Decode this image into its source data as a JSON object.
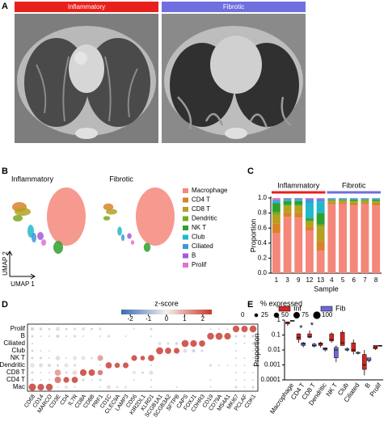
{
  "panel_a": {
    "label": "A",
    "groups": [
      {
        "name": "Inflammatory",
        "color": "#e8201c"
      },
      {
        "name": "Fibrotic",
        "color": "#6f6fe0"
      }
    ]
  },
  "panel_b": {
    "label": "B",
    "titles": [
      "Inflammatory",
      "Fibrotic"
    ],
    "x_label": "UMAP 1",
    "y_label": "UMAP 2"
  },
  "chart_data": [
    {
      "type": "stacked_bar",
      "label": "C",
      "y_label": "Proportion",
      "x_label": "Sample",
      "categories": [
        "1",
        "3",
        "9",
        "12",
        "13",
        "4",
        "5",
        "6",
        "7",
        "8"
      ],
      "groups": [
        {
          "name": "Inflammatory",
          "color": "#e8201c",
          "count": 5
        },
        {
          "name": "Fibrotic",
          "color": "#6f6fe0",
          "count": 5
        }
      ],
      "ylim": [
        0,
        1
      ],
      "yticks": [
        {
          "value": 0,
          "label": "0.0"
        },
        0.2,
        0.4,
        0.6,
        0.8,
        {
          "value": 1,
          "label": "1.0"
        }
      ],
      "series": [
        {
          "name": "Macrophage",
          "color": "#f4877a",
          "values": [
            0.53,
            0.75,
            0.74,
            0.57,
            0.3,
            0.92,
            0.925,
            0.9,
            0.92,
            0.9
          ]
        },
        {
          "name": "CD4 T",
          "color": "#d9822b",
          "values": [
            0.13,
            0.06,
            0.07,
            0.05,
            0.12,
            0.02,
            0.02,
            0.03,
            0.02,
            0.03
          ]
        },
        {
          "name": "CD8 T",
          "color": "#b5a020",
          "values": [
            0.12,
            0.08,
            0.08,
            0.06,
            0.2,
            0.02,
            0.015,
            0.02,
            0.02,
            0.02
          ]
        },
        {
          "name": "Dendritic",
          "color": "#7aa81e",
          "values": [
            0.03,
            0.02,
            0.02,
            0.02,
            0.03,
            0.01,
            0.01,
            0.01,
            0.01,
            0.01
          ]
        },
        {
          "name": "NK T",
          "color": "#2ea02e",
          "values": [
            0.12,
            0.05,
            0.05,
            0.03,
            0.15,
            0.01,
            0.01,
            0.02,
            0.01,
            0.02
          ]
        },
        {
          "name": "Club",
          "color": "#21b8c9",
          "values": [
            0.03,
            0.02,
            0.02,
            0.2,
            0.15,
            0.01,
            0.01,
            0.01,
            0.01,
            0.01
          ]
        },
        {
          "name": "Ciliated",
          "color": "#3a9ad9",
          "values": [
            0.01,
            0.01,
            0.01,
            0.05,
            0.03,
            0.005,
            0.005,
            0.005,
            0.005,
            0.005
          ]
        },
        {
          "name": "B",
          "color": "#a35bd8",
          "values": [
            0.01,
            0.005,
            0.005,
            0.01,
            0.01,
            0.003,
            0.003,
            0.003,
            0.003,
            0.003
          ]
        },
        {
          "name": "Prolif",
          "color": "#e36fd2",
          "values": [
            0.02,
            0.005,
            0.005,
            0.01,
            0.01,
            0.002,
            0.002,
            0.002,
            0.002,
            0.002
          ]
        }
      ]
    },
    {
      "type": "dot_plot",
      "label": "D",
      "colorbar_title": "z-score",
      "size_title": "% expressed",
      "zlim": [
        -2.5,
        2.5
      ],
      "colors": [
        "#3a6cb5",
        "#f4f0ea",
        "#c8372d"
      ],
      "colorbar_ticks": [
        -2,
        -1,
        0,
        1,
        2
      ],
      "size_ticks": [
        0,
        25,
        50,
        75,
        100
      ],
      "dot_color": "#000000",
      "rows": [
        "Prolif",
        "B",
        "Ciliated",
        "Club",
        "NK T",
        "Dendritic",
        "CD8 T",
        "CD4 T",
        "Mac"
      ],
      "genes": [
        "CD68",
        "CD14",
        "MARCO",
        "CD3E",
        "CD4",
        "IL7R",
        "CD8A",
        "CD8B",
        "PRF1",
        "CD1C",
        "CLEC9A",
        "LAMP3",
        "CD56",
        "KIR2DL1",
        "KLRD1",
        "SCGB1A1",
        "SCGB3A2",
        "SFTPB",
        "CAPS",
        "FOXJ1",
        "CDHR3",
        "CD19",
        "CD79A",
        "MS4A1",
        "MKI67",
        "PCLAF",
        "CDK1"
      ],
      "pct": [
        [
          20,
          15,
          10,
          30,
          10,
          15,
          20,
          10,
          15,
          0,
          0,
          0,
          5,
          0,
          10,
          0,
          0,
          0,
          0,
          0,
          0,
          5,
          5,
          5,
          80,
          75,
          85
        ],
        [
          10,
          5,
          5,
          20,
          5,
          10,
          5,
          0,
          5,
          10,
          0,
          5,
          0,
          0,
          5,
          0,
          0,
          0,
          0,
          0,
          0,
          85,
          90,
          80,
          10,
          10,
          15
        ],
        [
          5,
          0,
          0,
          0,
          0,
          0,
          0,
          0,
          0,
          0,
          0,
          0,
          0,
          0,
          0,
          20,
          10,
          15,
          90,
          80,
          70,
          0,
          0,
          0,
          5,
          5,
          10
        ],
        [
          10,
          5,
          5,
          0,
          0,
          0,
          0,
          0,
          0,
          0,
          0,
          0,
          0,
          0,
          0,
          90,
          70,
          60,
          30,
          20,
          10,
          0,
          0,
          0,
          5,
          0,
          5
        ],
        [
          10,
          10,
          5,
          40,
          5,
          30,
          30,
          10,
          60,
          0,
          0,
          0,
          60,
          40,
          70,
          0,
          0,
          0,
          0,
          0,
          0,
          0,
          0,
          0,
          5,
          5,
          5
        ],
        [
          40,
          30,
          20,
          10,
          30,
          10,
          0,
          0,
          5,
          70,
          50,
          60,
          0,
          0,
          5,
          0,
          0,
          0,
          0,
          0,
          0,
          10,
          5,
          5,
          5,
          5,
          5
        ],
        [
          10,
          5,
          5,
          70,
          10,
          40,
          80,
          75,
          50,
          0,
          0,
          0,
          20,
          10,
          30,
          0,
          0,
          0,
          0,
          0,
          0,
          0,
          0,
          0,
          5,
          5,
          5
        ],
        [
          10,
          5,
          5,
          75,
          60,
          70,
          10,
          5,
          10,
          0,
          0,
          0,
          5,
          0,
          5,
          0,
          0,
          0,
          0,
          0,
          0,
          5,
          0,
          0,
          5,
          5,
          5
        ],
        [
          95,
          80,
          85,
          5,
          20,
          5,
          0,
          0,
          5,
          30,
          10,
          15,
          0,
          0,
          5,
          0,
          0,
          5,
          0,
          0,
          0,
          5,
          0,
          0,
          10,
          5,
          10
        ]
      ],
      "z": [
        [
          -0.5,
          -0.5,
          -0.5,
          -0.3,
          -0.5,
          -0.3,
          -0.3,
          -0.5,
          -0.3,
          -0.5,
          -0.5,
          -0.5,
          -0.5,
          -0.5,
          -0.5,
          -0.5,
          -0.5,
          -0.5,
          -0.5,
          -0.5,
          -0.5,
          -0.5,
          -0.5,
          -0.5,
          2,
          2,
          2
        ],
        [
          -0.5,
          -0.5,
          -0.5,
          -0.5,
          -0.5,
          -0.5,
          -0.5,
          -0.5,
          -0.5,
          -0.5,
          -0.5,
          -0.5,
          -0.5,
          -0.5,
          -0.5,
          -0.5,
          -0.5,
          -0.5,
          -0.5,
          -0.5,
          -0.5,
          2,
          2,
          2,
          -0.5,
          -0.5,
          -0.5
        ],
        [
          -0.5,
          -0.5,
          -0.5,
          -0.5,
          -0.5,
          -0.5,
          -0.5,
          -0.5,
          -0.5,
          -0.5,
          -0.5,
          -0.5,
          -0.5,
          -0.5,
          -0.5,
          -0.3,
          -0.5,
          -0.5,
          2,
          2,
          2,
          -0.5,
          -0.5,
          -0.5,
          -0.5,
          -0.5,
          -0.5
        ],
        [
          -0.5,
          -0.5,
          -0.5,
          -0.5,
          -0.5,
          -0.5,
          -0.5,
          -0.5,
          -0.5,
          -0.5,
          -0.5,
          -0.5,
          -0.5,
          -0.5,
          -0.5,
          2,
          2,
          2,
          -0.3,
          -0.5,
          -0.5,
          -0.5,
          -0.5,
          -0.5,
          -0.5,
          -0.5,
          -0.5
        ],
        [
          -0.5,
          -0.5,
          -0.5,
          0.3,
          -0.5,
          -0.2,
          0.2,
          -0.3,
          1,
          -0.5,
          -0.5,
          -0.5,
          2,
          2,
          2,
          -0.5,
          -0.5,
          -0.5,
          -0.5,
          -0.5,
          -0.5,
          -0.5,
          -0.5,
          -0.5,
          -0.5,
          -0.5,
          -0.5
        ],
        [
          -0.2,
          -0.3,
          -0.4,
          -0.5,
          -0.2,
          -0.5,
          -0.5,
          -0.5,
          -0.5,
          2,
          2,
          2,
          -0.5,
          -0.5,
          -0.5,
          -0.5,
          -0.5,
          -0.5,
          -0.5,
          -0.5,
          -0.5,
          -0.5,
          -0.5,
          -0.5,
          -0.5,
          -0.5,
          -0.5
        ],
        [
          -0.5,
          -0.5,
          -0.5,
          1,
          -0.5,
          0.3,
          2,
          2,
          1.5,
          -0.5,
          -0.5,
          -0.5,
          -0.2,
          -0.5,
          0.3,
          -0.5,
          -0.5,
          -0.5,
          -0.5,
          -0.5,
          -0.5,
          -0.5,
          -0.5,
          -0.5,
          -0.5,
          -0.5,
          -0.5
        ],
        [
          -0.5,
          -0.5,
          -0.5,
          1.5,
          2,
          2,
          -0.5,
          -0.5,
          -0.5,
          -0.5,
          -0.5,
          -0.5,
          -0.5,
          -0.5,
          -0.5,
          -0.5,
          -0.5,
          -0.5,
          -0.5,
          -0.5,
          -0.5,
          -0.5,
          -0.5,
          -0.5,
          -0.5,
          -0.5,
          -0.5
        ],
        [
          2,
          2,
          2,
          -0.5,
          0.2,
          -0.5,
          -0.5,
          -0.5,
          -0.5,
          0.3,
          -0.3,
          -0.2,
          -0.5,
          -0.5,
          -0.5,
          -0.5,
          -0.5,
          -0.5,
          -0.5,
          -0.5,
          -0.5,
          -0.5,
          -0.5,
          -0.5,
          -0.5,
          -0.5,
          -0.5
        ]
      ]
    },
    {
      "type": "box",
      "label": "E",
      "y_label": "Proportion",
      "log_y": true,
      "categories": [
        "Macrophage",
        "CD4 T",
        "CD8 T",
        "Dendritic",
        "NK T",
        "Club",
        "Ciliated",
        "B",
        "Prolif"
      ],
      "significance": [
        null,
        "*",
        "*",
        null,
        null,
        null,
        null,
        null,
        null
      ],
      "ylim": [
        0.0001,
        1
      ],
      "yticks": [
        1,
        0.1,
        0.01,
        0.001,
        0.0001
      ],
      "series": [
        {
          "name": "Inf",
          "color": "#d8241f",
          "boxes": [
            {
              "min": 0.4,
              "q1": 0.55,
              "median": 0.7,
              "q3": 0.75,
              "max": 0.78
            },
            {
              "min": 0.03,
              "q1": 0.05,
              "median": 0.07,
              "q3": 0.12,
              "max": 0.13
            },
            {
              "min": 0.06,
              "q1": 0.07,
              "median": 0.08,
              "q3": 0.12,
              "max": 0.2
            },
            {
              "min": 0.015,
              "q1": 0.02,
              "median": 0.025,
              "q3": 0.03,
              "max": 0.035
            },
            {
              "min": 0.03,
              "q1": 0.04,
              "median": 0.05,
              "q3": 0.12,
              "max": 0.15
            },
            {
              "min": 0.02,
              "q1": 0.02,
              "median": 0.03,
              "q3": 0.15,
              "max": 0.2
            },
            {
              "min": 0.005,
              "q1": 0.008,
              "median": 0.01,
              "q3": 0.03,
              "max": 0.05
            },
            {
              "min": 0.0002,
              "q1": 0.0005,
              "median": 0.001,
              "q3": 0.005,
              "max": 0.01
            },
            {
              "min": 0.01,
              "q1": 0.012,
              "median": 0.015,
              "q3": 0.02,
              "max": 0.02
            }
          ]
        },
        {
          "name": "Fib",
          "color": "#6b6bd6",
          "boxes": [
            {
              "min": 0.88,
              "q1": 0.9,
              "median": 0.92,
              "q3": 0.93,
              "max": 0.94
            },
            {
              "min": 0.015,
              "q1": 0.02,
              "median": 0.025,
              "q3": 0.03,
              "max": 0.035
            },
            {
              "min": 0.015,
              "q1": 0.018,
              "median": 0.02,
              "q3": 0.025,
              "max": 0.03
            },
            {
              "min": 0.008,
              "q1": 0.01,
              "median": 0.012,
              "q3": 0.014,
              "max": 0.015
            },
            {
              "min": 0.0015,
              "q1": 0.003,
              "median": 0.01,
              "q3": 0.015,
              "max": 0.02
            },
            {
              "min": 0.008,
              "q1": 0.01,
              "median": 0.01,
              "q3": 0.012,
              "max": 0.015
            },
            {
              "min": 0.005,
              "q1": 0.006,
              "median": 0.006,
              "q3": 0.007,
              "max": 0.008
            },
            {
              "min": 0.0015,
              "q1": 0.002,
              "median": 0.002,
              "q3": 0.003,
              "max": 0.003
            },
            {
              "min": 0.02,
              "q1": 0.02,
              "median": 0.02,
              "q3": 0.02,
              "max": 0.02
            }
          ]
        }
      ]
    }
  ]
}
